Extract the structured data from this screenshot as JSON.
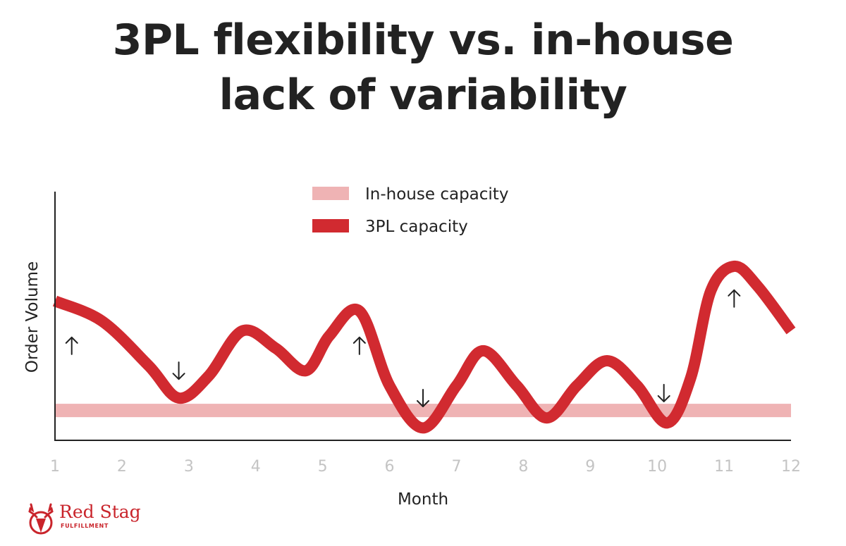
{
  "title_line1": "3PL flexibility vs. in-house",
  "title_line2": "lack of variability",
  "colors": {
    "in_house": "#efb3b4",
    "three_pl": "#d12a30",
    "axis": "#222222",
    "tick_text": "#c4c4c4",
    "brand": "#c9242b"
  },
  "logo": {
    "name": "Red Stag",
    "sub": "FULFILLMENT",
    "icon": "stag-head-icon"
  },
  "chart_data": {
    "type": "line",
    "title": "3PL flexibility vs. in-house lack of variability",
    "xlabel": "Month",
    "ylabel": "Order Volume",
    "xlim": [
      1,
      12
    ],
    "ylim": [
      0,
      100
    ],
    "x_ticks": [
      "1",
      "2",
      "3",
      "4",
      "5",
      "6",
      "7",
      "8",
      "9",
      "10",
      "11",
      "12"
    ],
    "grid": false,
    "legend_position": "top-center",
    "series": [
      {
        "name": "In-house capacity",
        "values": [
          [
            1,
            12
          ],
          [
            12,
            12
          ]
        ]
      },
      {
        "name": "3PL capacity",
        "values": [
          [
            1,
            56
          ],
          [
            1.7,
            48
          ],
          [
            2.4,
            30
          ],
          [
            2.85,
            17
          ],
          [
            3.3,
            26
          ],
          [
            3.8,
            44
          ],
          [
            4.3,
            37
          ],
          [
            4.75,
            28
          ],
          [
            5.1,
            42
          ],
          [
            5.55,
            52
          ],
          [
            6,
            22
          ],
          [
            6.5,
            5
          ],
          [
            7,
            22
          ],
          [
            7.4,
            36
          ],
          [
            7.9,
            22
          ],
          [
            8.35,
            9
          ],
          [
            8.8,
            22
          ],
          [
            9.25,
            32
          ],
          [
            9.7,
            22
          ],
          [
            10.15,
            7
          ],
          [
            10.5,
            25
          ],
          [
            10.8,
            60
          ],
          [
            11.15,
            70
          ],
          [
            11.5,
            62
          ],
          [
            12,
            44
          ]
        ]
      }
    ],
    "annotations": [
      {
        "symbol": "↑",
        "x": 1.25,
        "y": 38
      },
      {
        "symbol": "↓",
        "x": 2.85,
        "y": 28
      },
      {
        "symbol": "↑",
        "x": 5.55,
        "y": 38
      },
      {
        "symbol": "↓",
        "x": 6.5,
        "y": 17
      },
      {
        "symbol": "↓",
        "x": 10.1,
        "y": 19
      },
      {
        "symbol": "↑",
        "x": 11.15,
        "y": 57
      }
    ]
  }
}
